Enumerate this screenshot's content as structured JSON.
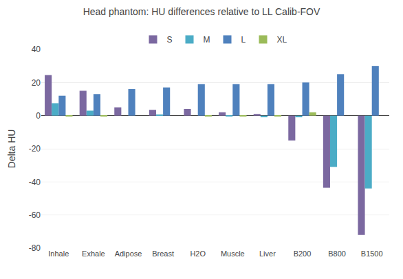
{
  "chart_data": {
    "type": "bar",
    "title": "Head phantom: HU differences relative to LL Calib-FOV",
    "ylabel": "Delta HU",
    "categories": [
      "Inhale",
      "Exhale",
      "Adipose",
      "Breast",
      "H2O",
      "Muscle",
      "Liver",
      "B200",
      "B800",
      "B1500"
    ],
    "series": [
      {
        "name": "S",
        "color": "#7b68a0",
        "values": [
          24.5,
          15.0,
          5.0,
          3.5,
          4.0,
          2.0,
          1.0,
          -15.0,
          -43.5,
          -72.0
        ]
      },
      {
        "name": "M",
        "color": "#4bacc6",
        "values": [
          7.5,
          3.0,
          0.0,
          0.5,
          0.0,
          -0.5,
          -1.0,
          -1.0,
          -31.0,
          -44.0
        ]
      },
      {
        "name": "L",
        "color": "#4f81bd",
        "values": [
          12.0,
          13.0,
          16.0,
          17.0,
          19.0,
          19.0,
          19.0,
          20.0,
          25.0,
          30.0
        ]
      },
      {
        "name": "XL",
        "color": "#9bbb59",
        "values": [
          -0.5,
          -0.5,
          0.0,
          0.0,
          -0.5,
          -0.5,
          -0.5,
          2.0,
          0.0,
          0.0
        ]
      }
    ],
    "ylim": [
      -80,
      40
    ],
    "yticks": [
      -80,
      -60,
      -40,
      -20,
      0,
      20,
      40
    ],
    "grid": true,
    "legend": "top"
  }
}
